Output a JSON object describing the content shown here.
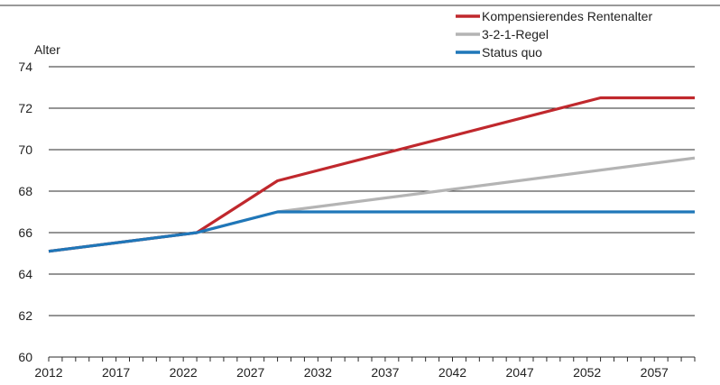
{
  "chart_data": {
    "type": "line",
    "ylabel": "Alter",
    "xlabel": "",
    "ylim": [
      60,
      74
    ],
    "xlim": [
      2012,
      2060
    ],
    "y_ticks": [
      60,
      62,
      64,
      66,
      68,
      70,
      72,
      74
    ],
    "x_ticks": [
      2012,
      2017,
      2022,
      2027,
      2032,
      2037,
      2042,
      2047,
      2052,
      2057
    ],
    "grid": "horizontal",
    "legend_position": "top-right",
    "series": [
      {
        "name": "Kompensierendes Rentenalter",
        "color": "#c0282d",
        "points": [
          [
            2012,
            65.1
          ],
          [
            2023,
            66.0
          ],
          [
            2029,
            68.5
          ],
          [
            2053,
            72.5
          ],
          [
            2060,
            72.5
          ]
        ]
      },
      {
        "name": "3-2-1-Regel",
        "color": "#b4b4b4",
        "points": [
          [
            2012,
            65.1
          ],
          [
            2023,
            66.0
          ],
          [
            2029,
            67.0
          ],
          [
            2060,
            69.6
          ]
        ]
      },
      {
        "name": "Status quo",
        "color": "#1f77b9",
        "points": [
          [
            2012,
            65.1
          ],
          [
            2023,
            66.0
          ],
          [
            2029,
            67.0
          ],
          [
            2060,
            67.0
          ]
        ]
      }
    ]
  }
}
